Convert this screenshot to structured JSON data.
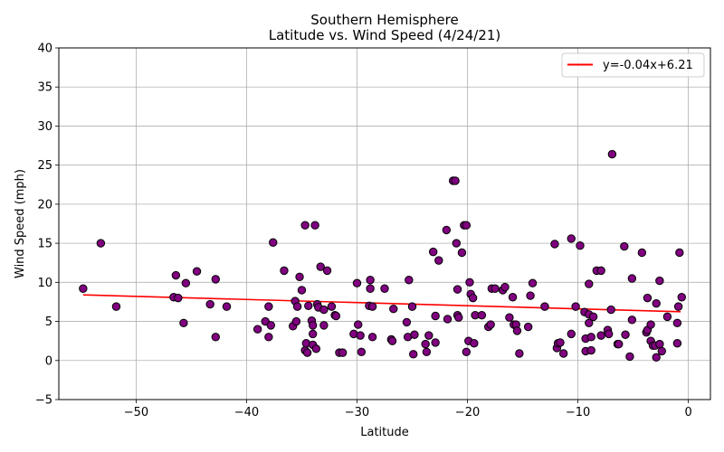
{
  "chart_data": {
    "type": "scatter",
    "title": "Southern Hemisphere",
    "subtitle": "Latitude vs. Wind Speed (4/24/21)",
    "xlabel": "Latitude",
    "ylabel": "Wind Speed (mph)",
    "xlim": [
      -57,
      2
    ],
    "ylim": [
      -5,
      40
    ],
    "xticks": [
      -50,
      -40,
      -30,
      -20,
      -10,
      0
    ],
    "xtick_labels": [
      "−50",
      "−40",
      "−30",
      "−20",
      "−10",
      "0"
    ],
    "yticks": [
      -5,
      0,
      5,
      10,
      15,
      20,
      25,
      30,
      35,
      40
    ],
    "ytick_labels": [
      "−5",
      "0",
      "5",
      "10",
      "15",
      "20",
      "25",
      "30",
      "35",
      "40"
    ],
    "grid": true,
    "legend_position": "top-right",
    "colors": {
      "points": "#800080",
      "point_edge": "#000000",
      "regression": "#ff0000"
    },
    "regression": {
      "label": "y=-0.04x+6.21",
      "slope": -0.04,
      "intercept": 6.21,
      "x_range": [
        -54.8,
        -0.7
      ]
    },
    "points": [
      [
        -54.8,
        9.2
      ],
      [
        -53.2,
        15.0
      ],
      [
        -51.8,
        6.9
      ],
      [
        -46.6,
        8.1
      ],
      [
        -46.4,
        10.9
      ],
      [
        -46.2,
        8.0
      ],
      [
        -45.7,
        4.8
      ],
      [
        -45.5,
        9.9
      ],
      [
        -44.5,
        11.4
      ],
      [
        -43.3,
        7.2
      ],
      [
        -42.8,
        10.4
      ],
      [
        -42.8,
        3.0
      ],
      [
        -41.8,
        6.9
      ],
      [
        -39.0,
        4.0
      ],
      [
        -38.3,
        5.0
      ],
      [
        -38.0,
        6.9
      ],
      [
        -38.0,
        3.0
      ],
      [
        -37.8,
        4.5
      ],
      [
        -37.6,
        15.1
      ],
      [
        -36.6,
        11.5
      ],
      [
        -35.8,
        4.4
      ],
      [
        -35.6,
        7.6
      ],
      [
        -35.5,
        5.0
      ],
      [
        -35.4,
        6.9
      ],
      [
        -35.2,
        10.7
      ],
      [
        -35.0,
        9.0
      ],
      [
        -34.7,
        17.3
      ],
      [
        -34.7,
        1.3
      ],
      [
        -34.6,
        2.2
      ],
      [
        -34.5,
        1.0
      ],
      [
        -34.4,
        7.0
      ],
      [
        -34.1,
        5.1
      ],
      [
        -34.0,
        4.5
      ],
      [
        -34.0,
        3.4
      ],
      [
        -34.0,
        2.0
      ],
      [
        -33.8,
        17.3
      ],
      [
        -33.7,
        1.5
      ],
      [
        -33.6,
        7.2
      ],
      [
        -33.5,
        6.8
      ],
      [
        -33.3,
        12.0
      ],
      [
        -33.0,
        6.5
      ],
      [
        -33.0,
        4.5
      ],
      [
        -32.7,
        11.5
      ],
      [
        -32.3,
        6.9
      ],
      [
        -32.0,
        5.8
      ],
      [
        -31.9,
        5.7
      ],
      [
        -31.6,
        1.0
      ],
      [
        -31.3,
        1.0
      ],
      [
        -30.3,
        3.4
      ],
      [
        -30.0,
        9.9
      ],
      [
        -29.9,
        4.6
      ],
      [
        -29.7,
        3.2
      ],
      [
        -29.6,
        1.1
      ],
      [
        -28.9,
        7.0
      ],
      [
        -28.8,
        10.3
      ],
      [
        -28.8,
        9.2
      ],
      [
        -28.6,
        6.9
      ],
      [
        -28.6,
        3.0
      ],
      [
        -27.5,
        9.2
      ],
      [
        -26.9,
        2.7
      ],
      [
        -26.8,
        2.5
      ],
      [
        -26.7,
        6.6
      ],
      [
        -25.5,
        4.9
      ],
      [
        -25.4,
        3.0
      ],
      [
        -25.3,
        10.3
      ],
      [
        -25.0,
        6.9
      ],
      [
        -24.9,
        0.8
      ],
      [
        -24.8,
        3.3
      ],
      [
        -23.8,
        2.1
      ],
      [
        -23.7,
        1.1
      ],
      [
        -23.5,
        3.2
      ],
      [
        -23.1,
        13.9
      ],
      [
        -22.9,
        5.7
      ],
      [
        -22.9,
        2.3
      ],
      [
        -22.6,
        12.8
      ],
      [
        -21.9,
        16.7
      ],
      [
        -21.8,
        5.3
      ],
      [
        -21.3,
        23.0
      ],
      [
        -21.1,
        23.0
      ],
      [
        -21.0,
        15.0
      ],
      [
        -20.9,
        9.1
      ],
      [
        -20.9,
        5.8
      ],
      [
        -20.8,
        5.5
      ],
      [
        -20.5,
        13.8
      ],
      [
        -20.3,
        17.3
      ],
      [
        -20.1,
        17.3
      ],
      [
        -20.1,
        1.1
      ],
      [
        -19.9,
        2.5
      ],
      [
        -19.8,
        10.0
      ],
      [
        -19.7,
        8.5
      ],
      [
        -19.5,
        8.0
      ],
      [
        -19.4,
        2.2
      ],
      [
        -19.3,
        5.8
      ],
      [
        -18.7,
        5.8
      ],
      [
        -18.1,
        4.3
      ],
      [
        -17.9,
        4.6
      ],
      [
        -17.8,
        9.2
      ],
      [
        -17.5,
        9.2
      ],
      [
        -16.8,
        9.0
      ],
      [
        -16.6,
        9.4
      ],
      [
        -16.2,
        5.5
      ],
      [
        -15.9,
        8.1
      ],
      [
        -15.8,
        4.6
      ],
      [
        -15.6,
        4.6
      ],
      [
        -15.5,
        3.8
      ],
      [
        -15.3,
        0.9
      ],
      [
        -14.5,
        4.3
      ],
      [
        -14.3,
        8.3
      ],
      [
        -14.1,
        9.9
      ],
      [
        -13.0,
        6.9
      ],
      [
        -12.1,
        14.9
      ],
      [
        -11.9,
        1.6
      ],
      [
        -11.8,
        2.2
      ],
      [
        -11.6,
        2.3
      ],
      [
        -11.3,
        0.9
      ],
      [
        -10.6,
        15.6
      ],
      [
        -10.6,
        3.4
      ],
      [
        -10.2,
        6.9
      ],
      [
        -9.8,
        14.7
      ],
      [
        -9.4,
        6.2
      ],
      [
        -9.3,
        2.8
      ],
      [
        -9.3,
        1.2
      ],
      [
        -9.0,
        9.8
      ],
      [
        -9.0,
        4.8
      ],
      [
        -9.0,
        5.9
      ],
      [
        -8.8,
        3.0
      ],
      [
        -8.8,
        1.3
      ],
      [
        -8.6,
        5.6
      ],
      [
        -8.3,
        11.5
      ],
      [
        -7.9,
        11.5
      ],
      [
        -7.9,
        3.2
      ],
      [
        -7.3,
        3.9
      ],
      [
        -7.2,
        3.4
      ],
      [
        -7.0,
        6.5
      ],
      [
        -6.9,
        26.4
      ],
      [
        -6.4,
        2.1
      ],
      [
        -6.3,
        2.1
      ],
      [
        -5.8,
        14.6
      ],
      [
        -5.7,
        3.3
      ],
      [
        -5.3,
        0.5
      ],
      [
        -5.1,
        5.2
      ],
      [
        -5.1,
        10.5
      ],
      [
        -4.2,
        13.8
      ],
      [
        -3.8,
        3.6
      ],
      [
        -3.7,
        8.0
      ],
      [
        -3.7,
        3.9
      ],
      [
        -3.4,
        4.6
      ],
      [
        -3.4,
        2.5
      ],
      [
        -3.2,
        1.9
      ],
      [
        -3.0,
        1.9
      ],
      [
        -2.9,
        0.4
      ],
      [
        -2.9,
        7.3
      ],
      [
        -2.6,
        2.1
      ],
      [
        -2.6,
        10.2
      ],
      [
        -2.4,
        1.2
      ],
      [
        -1.9,
        5.6
      ],
      [
        -1.0,
        4.8
      ],
      [
        -1.0,
        2.2
      ],
      [
        -0.9,
        6.9
      ],
      [
        -0.8,
        13.8
      ],
      [
        -0.6,
        8.1
      ]
    ]
  }
}
